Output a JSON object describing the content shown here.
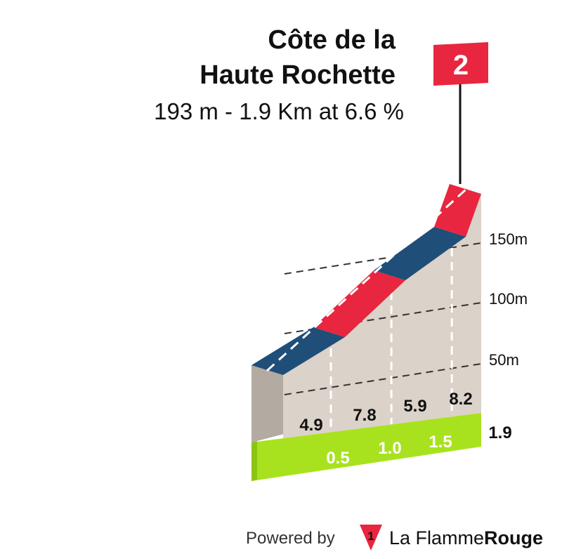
{
  "header": {
    "title_line1": "Côte de la",
    "title_line2": "Haute Rochette",
    "subtitle": "193 m - 1.9 Km at 6.6 %"
  },
  "flag": {
    "number": "2",
    "color": "#e8263f"
  },
  "colors": {
    "red": "#e8263f",
    "blue": "#1f4e79",
    "wall": "#dbd2c9",
    "wall_side": "#b3aaa2",
    "green": "#a8e21e"
  },
  "chart_data": {
    "type": "area",
    "distance_total_km": 1.9,
    "x_ticks": [
      "0.5",
      "1.0",
      "1.5"
    ],
    "x_end_label": "1.9",
    "y_ticks": [
      "50m",
      "100m",
      "150m"
    ],
    "y_tick_values": [
      50,
      100,
      150
    ],
    "segments": [
      {
        "from_km": 0.0,
        "to_km": 0.5,
        "gradient": "4.9",
        "color": "blue"
      },
      {
        "from_km": 0.5,
        "to_km": 1.0,
        "gradient": "7.8",
        "color": "red"
      },
      {
        "from_km": 1.0,
        "to_km": 1.5,
        "gradient": "5.9",
        "color": "blue"
      },
      {
        "from_km": 1.5,
        "to_km": 1.9,
        "gradient": "8.2",
        "color": "red"
      }
    ]
  },
  "footer": {
    "powered_by": "Powered by",
    "brand_light": "La Flamme",
    "brand_bold": "Rouge",
    "logo_number": "1"
  }
}
